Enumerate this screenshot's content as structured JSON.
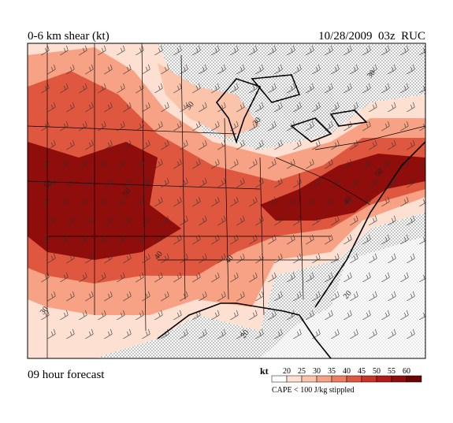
{
  "header": {
    "title": "0-6 km shear (kt)",
    "date": "10/28/2009  03z  RUC"
  },
  "footer": {
    "forecast": "09 hour forecast"
  },
  "legend": {
    "unit": "kt",
    "levels": [
      20,
      25,
      30,
      35,
      40,
      45,
      50,
      55,
      60
    ],
    "colors": [
      "#ffffff",
      "#fde0d2",
      "#fbc3aa",
      "#f7a284",
      "#ef7d5f",
      "#e0573f",
      "#cc3327",
      "#b11b17",
      "#8f0d0b",
      "#6a0405"
    ],
    "note": "CAPE < 100 J/kg stippled"
  },
  "map": {
    "contour_labels": [
      30,
      40,
      30,
      50,
      50,
      40,
      30,
      20,
      20,
      30,
      50,
      40
    ]
  }
}
